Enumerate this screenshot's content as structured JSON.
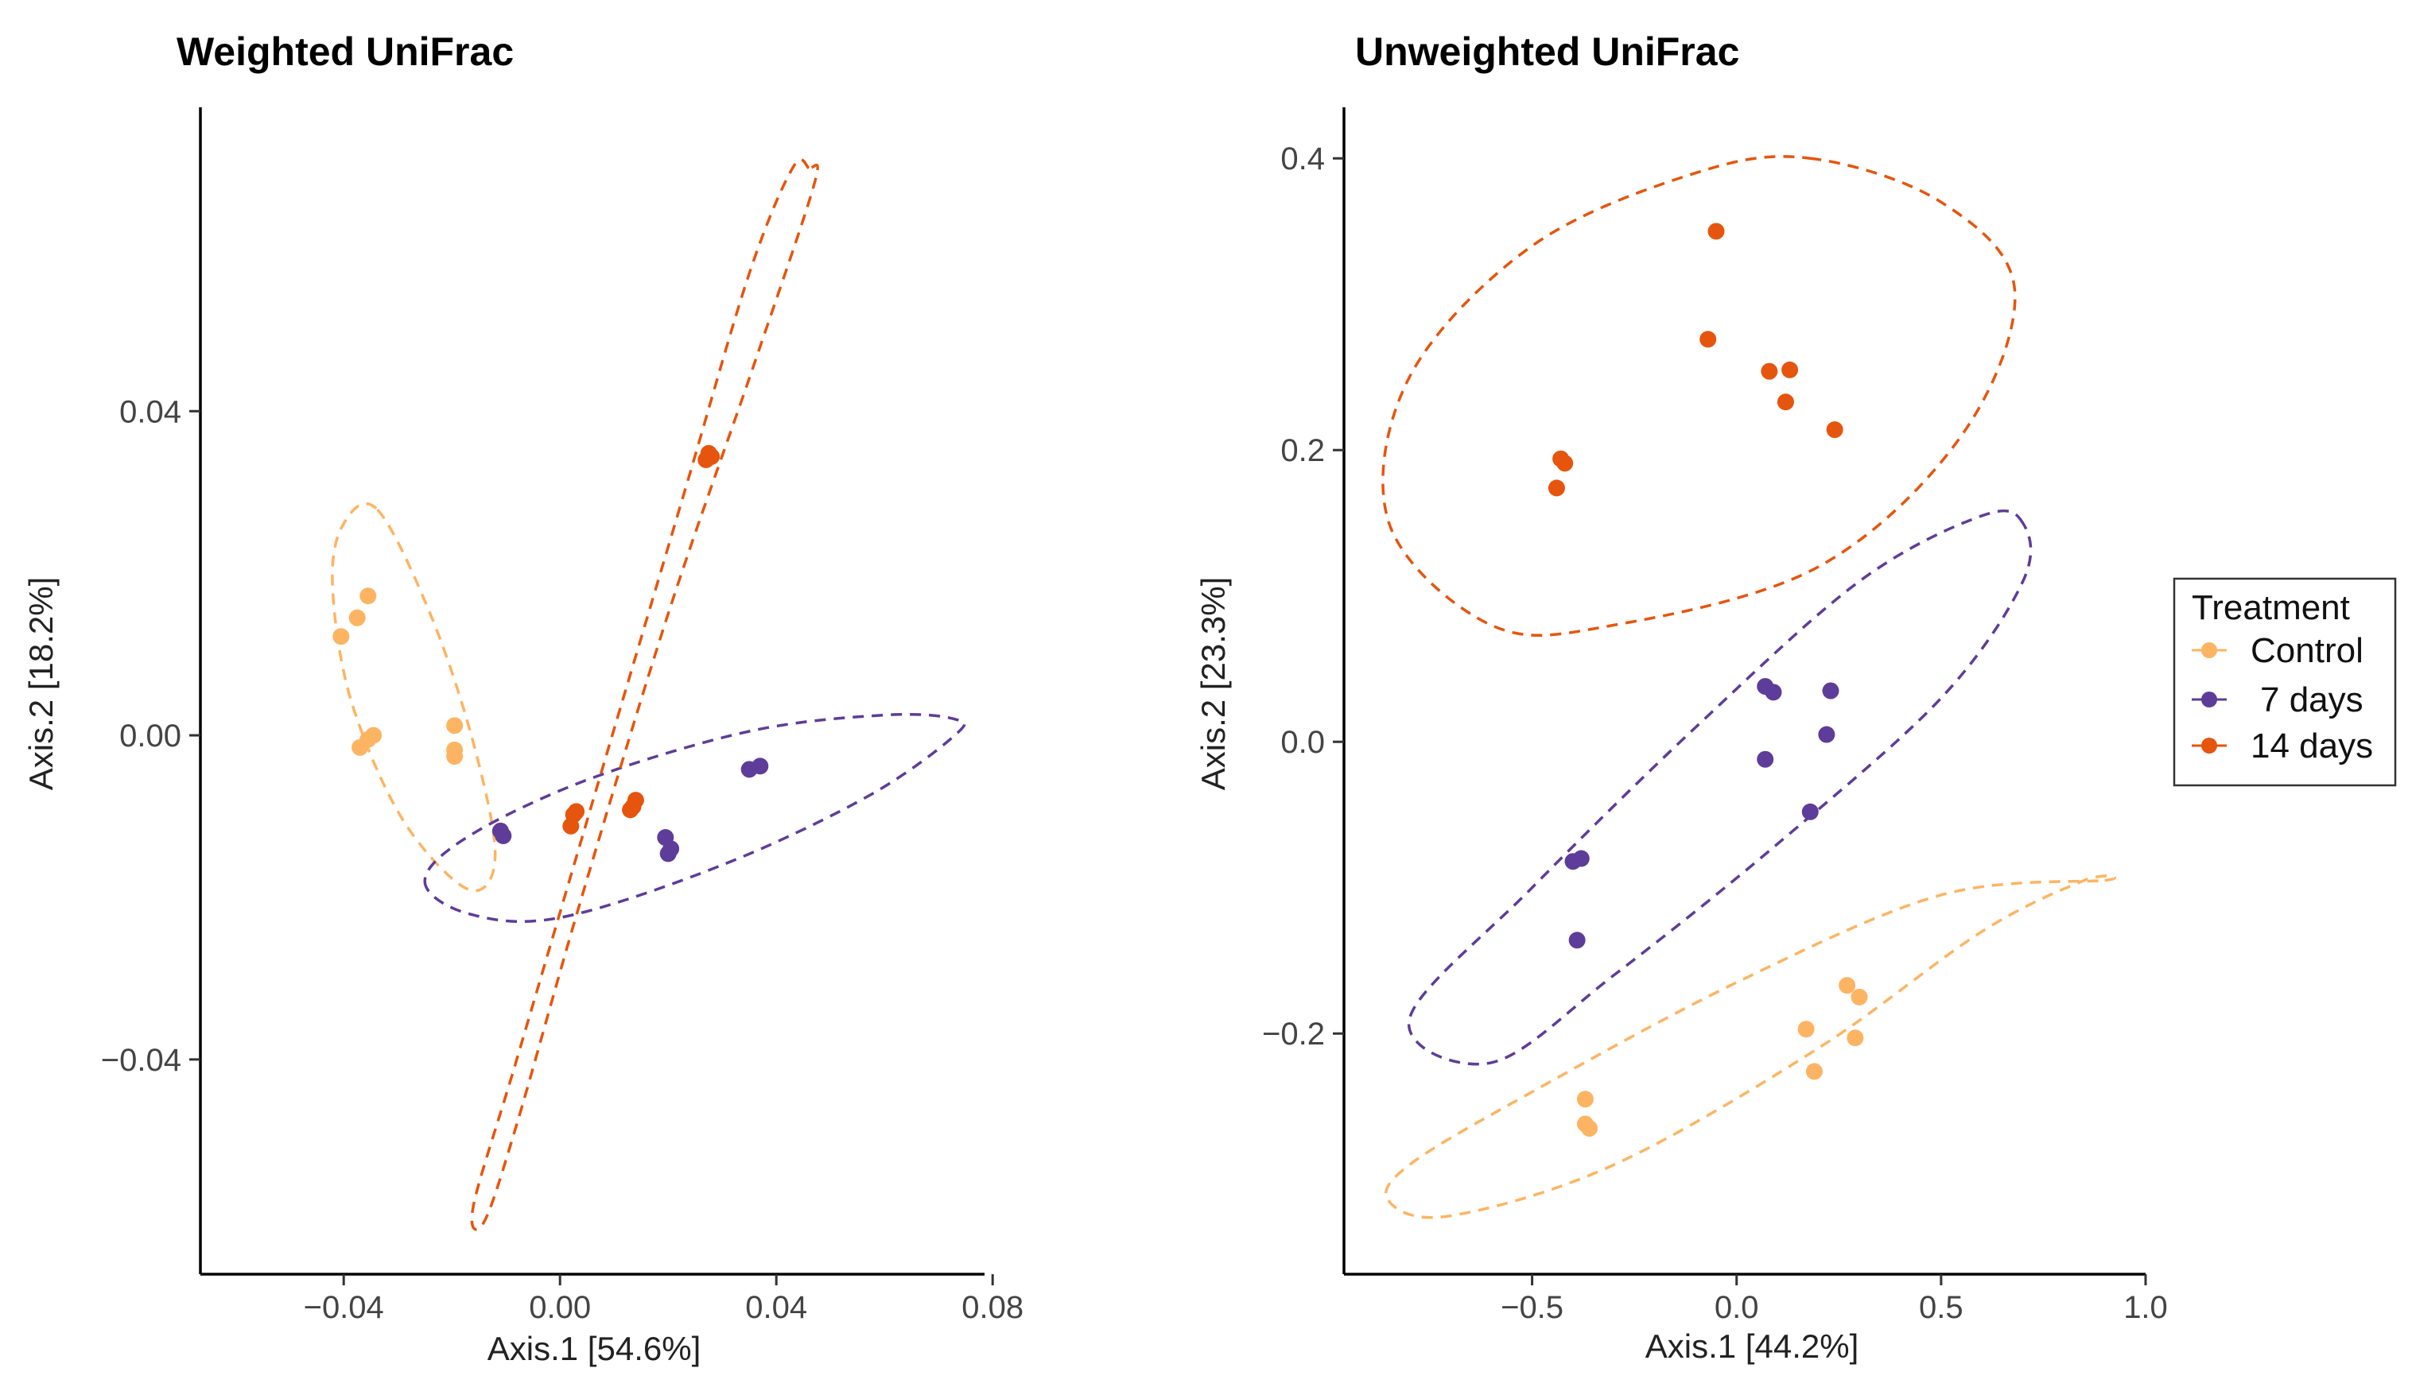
{
  "colors": {
    "Control": "#FDB462",
    "7 days": "#5E3C99",
    "14 days": "#E6550D"
  },
  "legend": {
    "title": "Treatment",
    "items": [
      "Control",
      "7 days",
      "14 days"
    ]
  },
  "chart_data": [
    {
      "type": "scatter",
      "title": "Weighted UniFrac",
      "xlabel": "Axis.1   [54.6%]",
      "ylabel": "Axis.2   [18.2%]",
      "xlim": [
        -0.0665,
        0.0785
      ],
      "ylim": [
        -0.0665,
        0.0775
      ],
      "xticks": [
        -0.04,
        0.0,
        0.04,
        0.08
      ],
      "xtick_labels": [
        "−0.04",
        "0.00",
        "0.04",
        "0.08"
      ],
      "yticks": [
        -0.04,
        0.0,
        0.04
      ],
      "ytick_labels": [
        "−0.04",
        "0.00",
        "0.04"
      ],
      "series": [
        {
          "name": "Control",
          "points": [
            [
              -0.0355,
              0.0172
            ],
            [
              -0.0375,
              0.0145
            ],
            [
              -0.0405,
              0.0122
            ],
            [
              -0.0345,
              0.0
            ],
            [
              -0.0355,
              -0.0005
            ],
            [
              -0.037,
              -0.0015
            ],
            [
              -0.0195,
              0.0012
            ],
            [
              -0.0195,
              -0.0018
            ],
            [
              -0.0195,
              -0.0026
            ]
          ]
        },
        {
          "name": "7 days",
          "points": [
            [
              -0.011,
              -0.0118
            ],
            [
              -0.0105,
              -0.0124
            ],
            [
              0.0195,
              -0.0126
            ],
            [
              0.0205,
              -0.014
            ],
            [
              0.02,
              -0.0146
            ],
            [
              0.035,
              -0.0042
            ],
            [
              0.037,
              -0.0038
            ]
          ]
        },
        {
          "name": "14 days",
          "points": [
            [
              0.0275,
              0.0348
            ],
            [
              0.028,
              0.0344
            ],
            [
              0.027,
              0.034
            ],
            [
              0.003,
              -0.0094
            ],
            [
              0.0025,
              -0.0098
            ],
            [
              0.002,
              -0.0112
            ],
            [
              0.014,
              -0.008
            ],
            [
              0.0135,
              -0.0088
            ],
            [
              0.013,
              -0.0092
            ]
          ]
        }
      ],
      "ellipses": [
        {
          "name": "Control",
          "points": [
            [
              -0.034,
              0.028
            ],
            [
              -0.0405,
              0.0255
            ],
            [
              -0.042,
              0.0175
            ],
            [
              -0.0385,
              0.004
            ],
            [
              -0.029,
              -0.0105
            ],
            [
              -0.017,
              -0.019
            ],
            [
              -0.012,
              -0.015
            ],
            [
              -0.016,
              -0.001
            ],
            [
              -0.024,
              0.015
            ]
          ]
        },
        {
          "name": "7 days",
          "points": [
            [
              -0.025,
              -0.018
            ],
            [
              -0.017,
              -0.022
            ],
            [
              0.0,
              -0.0225
            ],
            [
              0.03,
              -0.016
            ],
            [
              0.057,
              -0.0075
            ],
            [
              0.073,
              0.0
            ],
            [
              0.073,
              0.002
            ],
            [
              0.06,
              0.0025
            ],
            [
              0.035,
              0.0005
            ],
            [
              0.005,
              -0.0055
            ],
            [
              -0.017,
              -0.0125
            ]
          ]
        },
        {
          "name": "14 days",
          "points": [
            [
              0.046,
              0.07
            ],
            [
              0.043,
              0.07
            ],
            [
              0.035,
              0.057
            ],
            [
              0.023,
              0.03
            ],
            [
              0.007,
              -0.006
            ],
            [
              -0.008,
              -0.04
            ],
            [
              -0.016,
              -0.058
            ],
            [
              -0.014,
              -0.06
            ],
            [
              -0.008,
              -0.048
            ],
            [
              0.004,
              -0.02
            ],
            [
              0.02,
              0.015
            ],
            [
              0.036,
              0.046
            ],
            [
              0.047,
              0.068
            ]
          ]
        }
      ]
    },
    {
      "type": "scatter",
      "title": "Unweighted UniFrac",
      "xlabel": "Axis.1   [44.2%]",
      "ylabel": "Axis.2   [23.3%]",
      "xlim": [
        -0.96,
        1.0
      ],
      "ylim": [
        -0.365,
        0.435
      ],
      "xticks": [
        -0.5,
        0.0,
        0.5,
        1.0
      ],
      "xtick_labels": [
        "−0.5",
        "0.0",
        "0.5",
        "1.0"
      ],
      "yticks": [
        -0.2,
        0.0,
        0.2,
        0.4
      ],
      "ytick_labels": [
        "−0.2",
        "0.0",
        "0.2",
        "0.4"
      ],
      "series": [
        {
          "name": "Control",
          "points": [
            [
              0.27,
              -0.167
            ],
            [
              0.3,
              -0.175
            ],
            [
              0.29,
              -0.203
            ],
            [
              0.17,
              -0.197
            ],
            [
              0.19,
              -0.226
            ],
            [
              -0.37,
              -0.245
            ],
            [
              -0.37,
              -0.262
            ],
            [
              -0.36,
              -0.265
            ]
          ]
        },
        {
          "name": "7 days",
          "points": [
            [
              0.07,
              0.038
            ],
            [
              0.09,
              0.034
            ],
            [
              0.23,
              0.035
            ],
            [
              0.22,
              0.005
            ],
            [
              0.07,
              -0.012
            ],
            [
              0.18,
              -0.048
            ],
            [
              -0.4,
              -0.082
            ],
            [
              -0.38,
              -0.08
            ],
            [
              -0.39,
              -0.136
            ]
          ]
        },
        {
          "name": "14 days",
          "points": [
            [
              -0.05,
              0.35
            ],
            [
              -0.07,
              0.276
            ],
            [
              0.08,
              0.254
            ],
            [
              0.13,
              0.255
            ],
            [
              0.12,
              0.233
            ],
            [
              0.24,
              0.214
            ],
            [
              -0.43,
              0.194
            ],
            [
              -0.42,
              0.191
            ],
            [
              -0.44,
              0.174
            ]
          ]
        }
      ],
      "ellipses": [
        {
          "name": "Control",
          "points": [
            [
              0.9,
              -0.095
            ],
            [
              0.85,
              -0.095
            ],
            [
              0.6,
              -0.13
            ],
            [
              0.2,
              -0.21
            ],
            [
              -0.3,
              -0.29
            ],
            [
              -0.7,
              -0.325
            ],
            [
              -0.85,
              -0.315
            ],
            [
              -0.8,
              -0.29
            ],
            [
              -0.5,
              -0.24
            ],
            [
              0.0,
              -0.165
            ],
            [
              0.5,
              -0.105
            ]
          ]
        },
        {
          "name": "7 days",
          "points": [
            [
              0.7,
              0.15
            ],
            [
              0.6,
              0.155
            ],
            [
              0.3,
              0.11
            ],
            [
              -0.1,
              0.01
            ],
            [
              -0.5,
              -0.1
            ],
            [
              -0.8,
              -0.19
            ],
            [
              -0.6,
              -0.22
            ],
            [
              -0.3,
              -0.16
            ],
            [
              0.1,
              -0.07
            ],
            [
              0.5,
              0.03
            ],
            [
              0.7,
              0.11
            ]
          ]
        },
        {
          "name": "14 days",
          "points": [
            [
              0.18,
              0.4
            ],
            [
              0.5,
              0.37
            ],
            [
              0.68,
              0.31
            ],
            [
              0.55,
              0.21
            ],
            [
              0.2,
              0.12
            ],
            [
              -0.3,
              0.08
            ],
            [
              -0.6,
              0.08
            ],
            [
              -0.85,
              0.15
            ],
            [
              -0.8,
              0.25
            ],
            [
              -0.5,
              0.34
            ],
            [
              -0.1,
              0.39
            ]
          ]
        }
      ]
    }
  ]
}
